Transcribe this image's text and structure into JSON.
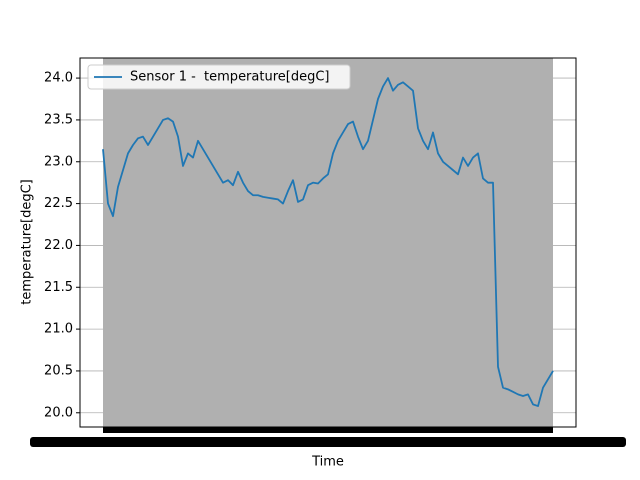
{
  "chart_data": {
    "type": "line",
    "xlabel": "Time",
    "ylabel": "temperature[degC]",
    "x": [
      0,
      1,
      2,
      3,
      4,
      5,
      6,
      7,
      8,
      9,
      10,
      11,
      12,
      13,
      14,
      15,
      16,
      17,
      18,
      19,
      20,
      21,
      22,
      23,
      24,
      25,
      26,
      27,
      28,
      29,
      30,
      31,
      32,
      33,
      34,
      35,
      36,
      37,
      38,
      39,
      40,
      41,
      42,
      43,
      44,
      45,
      46,
      47,
      48,
      49,
      50,
      51,
      52,
      53,
      54,
      55,
      56,
      57,
      58,
      59,
      60,
      61,
      62,
      63,
      64,
      65,
      66,
      67,
      68,
      69,
      70,
      71,
      72,
      73,
      74,
      75,
      76,
      77,
      78,
      79,
      80,
      81,
      82,
      83,
      84,
      85,
      86,
      87,
      88,
      89,
      90
    ],
    "series": [
      {
        "name": "Sensor 1 -  temperature[degC]",
        "color": "#1f77b4",
        "values": [
          23.15,
          22.5,
          22.35,
          22.7,
          22.9,
          23.1,
          23.2,
          23.28,
          23.3,
          23.2,
          23.3,
          23.4,
          23.5,
          23.52,
          23.48,
          23.3,
          22.95,
          23.1,
          23.05,
          23.25,
          23.15,
          23.05,
          22.95,
          22.85,
          22.75,
          22.78,
          22.72,
          22.88,
          22.75,
          22.65,
          22.6,
          22.6,
          22.58,
          22.57,
          22.56,
          22.55,
          22.5,
          22.65,
          22.78,
          22.52,
          22.55,
          22.72,
          22.75,
          22.74,
          22.8,
          22.85,
          23.1,
          23.25,
          23.35,
          23.45,
          23.48,
          23.3,
          23.15,
          23.25,
          23.5,
          23.75,
          23.9,
          24.0,
          23.85,
          23.92,
          23.95,
          23.9,
          23.85,
          23.4,
          23.25,
          23.15,
          23.35,
          23.1,
          23.0,
          22.95,
          22.9,
          22.85,
          23.05,
          22.95,
          23.05,
          23.1,
          22.8,
          22.75,
          22.75,
          20.55,
          20.3,
          20.28,
          20.25,
          20.22,
          20.2,
          20.22,
          20.1,
          20.08,
          20.3,
          20.4,
          20.5
        ]
      }
    ],
    "xlim": [
      -4.6,
      94.6
    ],
    "ylim": [
      19.83,
      24.24
    ],
    "yticks": [
      {
        "value": 20,
        "label": "20.0"
      },
      20.5,
      {
        "value": 21,
        "label": "21.0"
      },
      21.5,
      {
        "value": 22,
        "label": "22.0"
      },
      22.5,
      {
        "value": 23,
        "label": "23.0"
      },
      23.5,
      {
        "value": 24,
        "label": "24.0"
      }
    ],
    "grid": true,
    "shaded_span": [
      0,
      90
    ],
    "span_color": "#b0b0b0",
    "legend": "upper left"
  }
}
